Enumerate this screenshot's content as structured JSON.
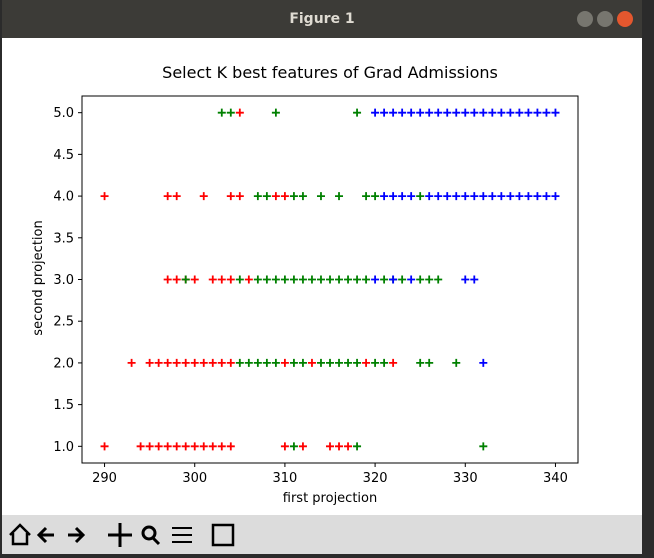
{
  "window_title": "Figure 1",
  "chart_data": {
    "type": "scatter",
    "title": "Select K best features of Grad Admissions",
    "xlabel": "first projection",
    "ylabel": "second projection",
    "xlim": [
      287.5,
      342.5
    ],
    "ylim": [
      0.8,
      5.2
    ],
    "xticks": [
      290,
      300,
      310,
      320,
      330,
      340
    ],
    "yticks": [
      {
        "value": 1,
        "label": "1.0"
      },
      {
        "value": 1.5,
        "label": "1.5"
      },
      {
        "value": 2,
        "label": "2.0"
      },
      {
        "value": 2.5,
        "label": "2.5"
      },
      {
        "value": 3,
        "label": "3.0"
      },
      {
        "value": 3.5,
        "label": "3.5"
      },
      {
        "value": 4,
        "label": "4.0"
      },
      {
        "value": 4.5,
        "label": "4.5"
      },
      {
        "value": 5,
        "label": "5.0"
      }
    ],
    "marker": "+",
    "series": [
      {
        "color": "#ff0000",
        "x": [
          305,
          290,
          297,
          298,
          301,
          304,
          305,
          309,
          310,
          297,
          298,
          299,
          300,
          302,
          303,
          304,
          306,
          293,
          295,
          296,
          297,
          298,
          299,
          300,
          301,
          302,
          303,
          304,
          310,
          313,
          319,
          322,
          290,
          294,
          295,
          296,
          297,
          298,
          299,
          300,
          301,
          302,
          303,
          304,
          310,
          312,
          315,
          316,
          317
        ],
        "values": [
          5,
          4,
          4,
          4,
          4,
          4,
          4,
          4,
          4,
          3,
          3,
          3,
          3,
          3,
          3,
          3,
          3,
          2,
          2,
          2,
          2,
          2,
          2,
          2,
          2,
          2,
          2,
          2,
          2,
          2,
          2,
          2,
          1,
          1,
          1,
          1,
          1,
          1,
          1,
          1,
          1,
          1,
          1,
          1,
          1,
          1,
          1,
          1,
          1
        ]
      },
      {
        "color": "#008000",
        "x": [
          303,
          304,
          309,
          318,
          307,
          308,
          311,
          312,
          314,
          316,
          319,
          320,
          325,
          299,
          305,
          307,
          308,
          309,
          310,
          311,
          312,
          313,
          314,
          315,
          316,
          317,
          318,
          319,
          321,
          322,
          323,
          325,
          326,
          327,
          305,
          306,
          307,
          308,
          309,
          311,
          312,
          314,
          315,
          316,
          317,
          318,
          320,
          321,
          325,
          326,
          329,
          311,
          318,
          332
        ],
        "values": [
          5,
          5,
          5,
          5,
          4,
          4,
          4,
          4,
          4,
          4,
          4,
          4,
          4,
          3,
          3,
          3,
          3,
          3,
          3,
          3,
          3,
          3,
          3,
          3,
          3,
          3,
          3,
          3,
          3,
          3,
          3,
          3,
          3,
          3,
          2,
          2,
          2,
          2,
          2,
          2,
          2,
          2,
          2,
          2,
          2,
          2,
          2,
          2,
          2,
          2,
          2,
          1,
          1,
          1
        ]
      },
      {
        "color": "#0000ff",
        "x": [
          320,
          321,
          322,
          323,
          324,
          325,
          326,
          327,
          328,
          329,
          330,
          331,
          332,
          333,
          334,
          335,
          336,
          337,
          338,
          339,
          340,
          321,
          322,
          323,
          324,
          326,
          327,
          328,
          329,
          330,
          331,
          332,
          333,
          334,
          335,
          336,
          337,
          338,
          339,
          340,
          320,
          322,
          324,
          330,
          331,
          332
        ],
        "values": [
          5,
          5,
          5,
          5,
          5,
          5,
          5,
          5,
          5,
          5,
          5,
          5,
          5,
          5,
          5,
          5,
          5,
          5,
          5,
          5,
          5,
          4,
          4,
          4,
          4,
          4,
          4,
          4,
          4,
          4,
          4,
          4,
          4,
          4,
          4,
          4,
          4,
          4,
          4,
          4,
          3,
          3,
          3,
          3,
          3,
          2
        ]
      }
    ]
  }
}
